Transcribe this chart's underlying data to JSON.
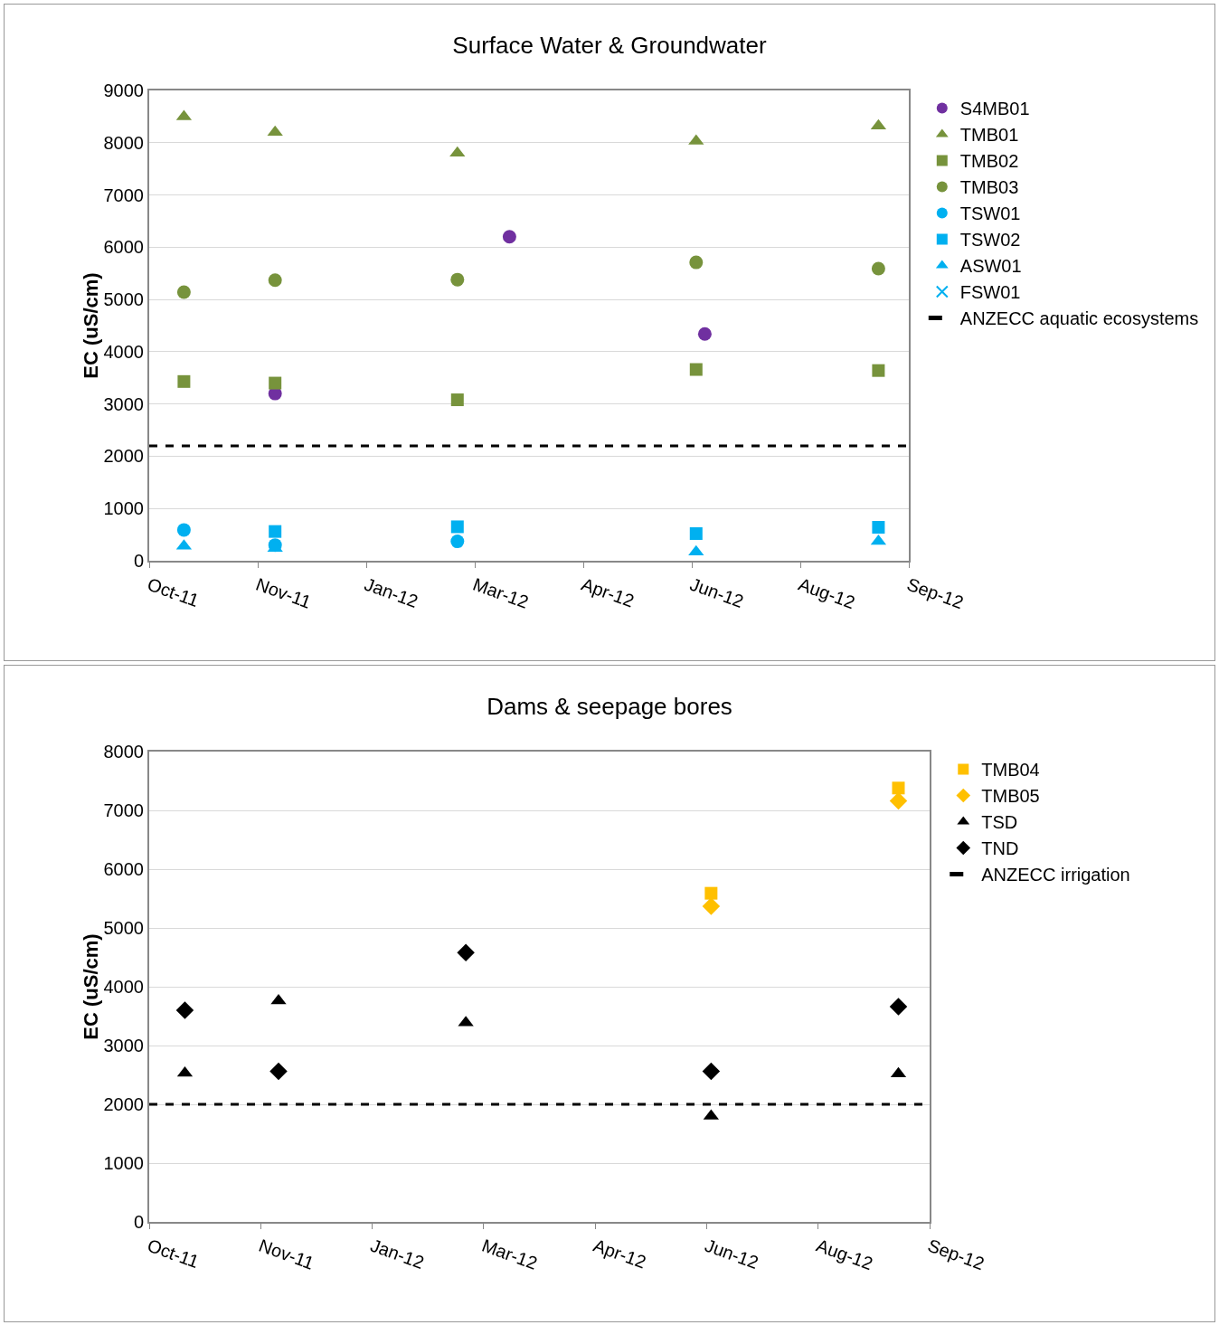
{
  "chart_data": [
    {
      "type": "scatter",
      "title": "Surface Water & Groundwater",
      "ylabel": "EC (uS/cm)",
      "xlim": [
        "2011-10-10",
        "2012-09-24"
      ],
      "xticks": [
        {
          "value": "2011-10-10",
          "label": "Oct-11"
        },
        {
          "value": "2011-11-29",
          "label": "Nov-11"
        },
        {
          "value": "2012-01-18",
          "label": "Jan-12"
        },
        {
          "value": "2012-03-08",
          "label": "Mar-12"
        },
        {
          "value": "2012-04-27",
          "label": "Apr-12"
        },
        {
          "value": "2012-06-16",
          "label": "Jun-12"
        },
        {
          "value": "2012-08-05",
          "label": "Aug-12"
        },
        {
          "value": "2012-09-24",
          "label": "Sep-12"
        }
      ],
      "ylim": [
        0,
        9000
      ],
      "yticks": [
        0,
        1000,
        2000,
        3000,
        4000,
        5000,
        6000,
        7000,
        8000,
        9000
      ],
      "grid": "y",
      "legend": "right",
      "series": [
        {
          "name": "S4MB01",
          "color": "#7030a0",
          "marker": "circle",
          "x": [
            "2011-12-07",
            "2012-03-24",
            "2012-06-22"
          ],
          "values": [
            3200,
            6200,
            4340
          ]
        },
        {
          "name": "TMB01",
          "color": "#77933c",
          "marker": "triangle",
          "x": [
            "2011-10-26",
            "2011-12-07",
            "2012-02-29",
            "2012-06-18",
            "2012-09-10"
          ],
          "values": [
            8500,
            8200,
            7800,
            8030,
            8320
          ]
        },
        {
          "name": "TMB02",
          "color": "#77933c",
          "marker": "square",
          "x": [
            "2011-10-26",
            "2011-12-07",
            "2012-02-29",
            "2012-06-18",
            "2012-09-10"
          ],
          "values": [
            3430,
            3400,
            3080,
            3660,
            3640
          ]
        },
        {
          "name": "TMB03",
          "color": "#77933c",
          "marker": "circle",
          "x": [
            "2011-10-26",
            "2011-12-07",
            "2012-02-29",
            "2012-06-18",
            "2012-09-10"
          ],
          "values": [
            5140,
            5370,
            5380,
            5710,
            5590
          ]
        },
        {
          "name": "TSW01",
          "color": "#00b0f0",
          "marker": "circle",
          "x": [
            "2011-10-26",
            "2011-12-07",
            "2012-02-29"
          ],
          "values": [
            590,
            300,
            370
          ]
        },
        {
          "name": "TSW02",
          "color": "#00b0f0",
          "marker": "square",
          "x": [
            "2011-12-07",
            "2012-02-29",
            "2012-06-18",
            "2012-09-10"
          ],
          "values": [
            560,
            650,
            520,
            640
          ]
        },
        {
          "name": "ASW01",
          "color": "#00b0f0",
          "marker": "triangle",
          "x": [
            "2011-10-26",
            "2011-12-07",
            "2012-02-29",
            "2012-06-18",
            "2012-09-10"
          ],
          "values": [
            280,
            240,
            null,
            170,
            370
          ]
        },
        {
          "name": "FSW01",
          "color": "#00b0f0",
          "marker": "cross"
        }
      ],
      "ref_lines": [
        {
          "axis": "y",
          "value": 2200,
          "label": "ANZECC aquatic ecosystems",
          "color": "#000000",
          "line_style": "dashed"
        }
      ]
    },
    {
      "type": "scatter",
      "title": "Dams & seepage bores",
      "ylabel": "EC (uS/cm)",
      "xlim": [
        "2011-10-10",
        "2012-09-24"
      ],
      "xticks": [
        {
          "value": "2011-10-10",
          "label": "Oct-11"
        },
        {
          "value": "2011-11-29",
          "label": "Nov-11"
        },
        {
          "value": "2012-01-18",
          "label": "Jan-12"
        },
        {
          "value": "2012-03-08",
          "label": "Mar-12"
        },
        {
          "value": "2012-04-27",
          "label": "Apr-12"
        },
        {
          "value": "2012-06-16",
          "label": "Jun-12"
        },
        {
          "value": "2012-08-05",
          "label": "Aug-12"
        },
        {
          "value": "2012-09-24",
          "label": "Sep-12"
        }
      ],
      "ylim": [
        0,
        8000
      ],
      "yticks": [
        0,
        1000,
        2000,
        3000,
        4000,
        5000,
        6000,
        7000,
        8000
      ],
      "grid": "y",
      "legend": "right",
      "series": [
        {
          "name": "TMB04",
          "color": "#ffc000",
          "marker": "square",
          "x": [
            "2012-06-18",
            "2012-09-10"
          ],
          "values": [
            5590,
            7380
          ]
        },
        {
          "name": "TMB05",
          "color": "#ffc000",
          "marker": "diamond",
          "x": [
            "2012-06-18",
            "2012-09-10"
          ],
          "values": [
            5370,
            7160
          ]
        },
        {
          "name": "TSD",
          "color": "#000000",
          "marker": "triangle",
          "x": [
            "2011-10-26",
            "2011-12-07",
            "2012-02-29",
            "2012-06-18",
            "2012-09-10"
          ],
          "values": [
            2530,
            3760,
            3390,
            1800,
            2520
          ]
        },
        {
          "name": "TND",
          "color": "#000000",
          "marker": "diamond",
          "x": [
            "2011-10-26",
            "2011-12-07",
            "2012-02-29",
            "2012-06-18",
            "2012-09-10"
          ],
          "values": [
            3600,
            2560,
            4580,
            2560,
            3660
          ]
        }
      ],
      "ref_lines": [
        {
          "axis": "y",
          "value": 2000,
          "label": "ANZECC irrigation",
          "color": "#000000",
          "line_style": "dashed"
        }
      ]
    }
  ]
}
